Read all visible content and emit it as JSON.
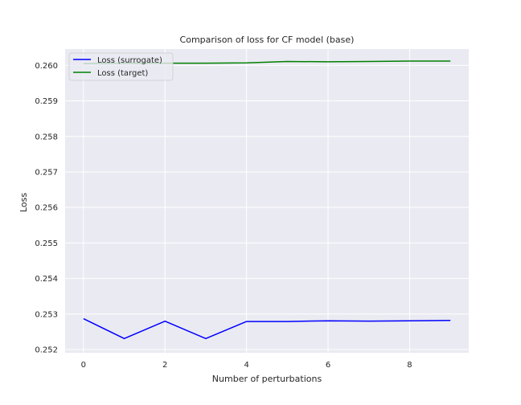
{
  "chart_data": {
    "type": "line",
    "title": "Comparison of loss for CF model (base)",
    "xlabel": "Number of perturbations",
    "ylabel": "Loss",
    "x": [
      0,
      1,
      2,
      3,
      4,
      5,
      6,
      7,
      8,
      9
    ],
    "xlim": [
      -0.45,
      9.45
    ],
    "ylim": [
      0.25191,
      0.26046
    ],
    "xticks": [
      "0",
      "2",
      "4",
      "6",
      "8"
    ],
    "xtick_values": [
      0,
      2,
      4,
      6,
      8
    ],
    "yticks": [
      "0.252",
      "0.253",
      "0.254",
      "0.255",
      "0.256",
      "0.257",
      "0.258",
      "0.259",
      "0.260"
    ],
    "ytick_values": [
      0.252,
      0.253,
      0.254,
      0.255,
      0.256,
      0.257,
      0.258,
      0.259,
      0.26
    ],
    "grid": true,
    "legend_position": "upper-left",
    "series": [
      {
        "name": "Loss (surrogate)",
        "color": "#0000ff",
        "values": [
          0.25287,
          0.25231,
          0.2528,
          0.25231,
          0.25279,
          0.25279,
          0.25281,
          0.2528,
          0.25281,
          0.25282
        ]
      },
      {
        "name": "Loss (target)",
        "color": "#008000",
        "values": [
          0.26005,
          0.26006,
          0.26006,
          0.26006,
          0.26007,
          0.26011,
          0.2601,
          0.26011,
          0.26012,
          0.26012
        ]
      }
    ]
  }
}
